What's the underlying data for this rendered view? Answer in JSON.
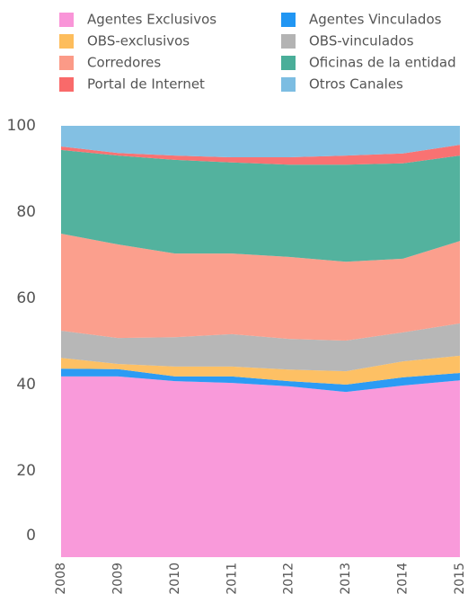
{
  "chart_data": {
    "type": "stacked-area",
    "categories": [
      "2008",
      "2009",
      "2010",
      "2011",
      "2012",
      "2013",
      "2014",
      "2015"
    ],
    "series": [
      {
        "name": "Agentes Exclusivos",
        "color": "#f995d8",
        "values": [
          41.9,
          41.9,
          40.8,
          40.4,
          39.6,
          38.3,
          39.8,
          41.0
        ]
      },
      {
        "name": "Agentes Vinculados",
        "color": "#2196f3",
        "values": [
          1.8,
          1.7,
          1.1,
          1.5,
          1.2,
          1.7,
          1.9,
          1.7
        ]
      },
      {
        "name": "OBS-exclusivos",
        "color": "#fdbd5c",
        "values": [
          2.5,
          1.2,
          2.3,
          2.3,
          2.7,
          3.1,
          3.7,
          4.0
        ]
      },
      {
        "name": "OBS-vinculados",
        "color": "#b3b3b3",
        "values": [
          6.3,
          6.0,
          6.8,
          7.5,
          7.1,
          7.1,
          6.7,
          7.5
        ]
      },
      {
        "name": "Corredores",
        "color": "#fb9a87",
        "values": [
          22.5,
          21.7,
          19.4,
          18.7,
          19.0,
          18.3,
          17.1,
          19.1
        ]
      },
      {
        "name": "Oficinas de la entidad",
        "color": "#4aae99",
        "values": [
          19.4,
          20.6,
          21.7,
          21.1,
          21.4,
          22.5,
          22.1,
          19.8
        ]
      },
      {
        "name": "Portal de Internet",
        "color": "#f96a6a",
        "values": [
          0.8,
          0.6,
          1.0,
          1.2,
          1.7,
          2.1,
          2.3,
          2.5
        ]
      },
      {
        "name": "Otros Canales",
        "color": "#7cbde2",
        "values": [
          4.8,
          6.3,
          6.9,
          7.3,
          7.3,
          6.9,
          6.4,
          4.4
        ]
      }
    ],
    "ylim": [
      0,
      100
    ],
    "yticks": [
      0,
      20,
      40,
      60,
      80,
      100
    ],
    "grid": false,
    "legend": "top"
  }
}
